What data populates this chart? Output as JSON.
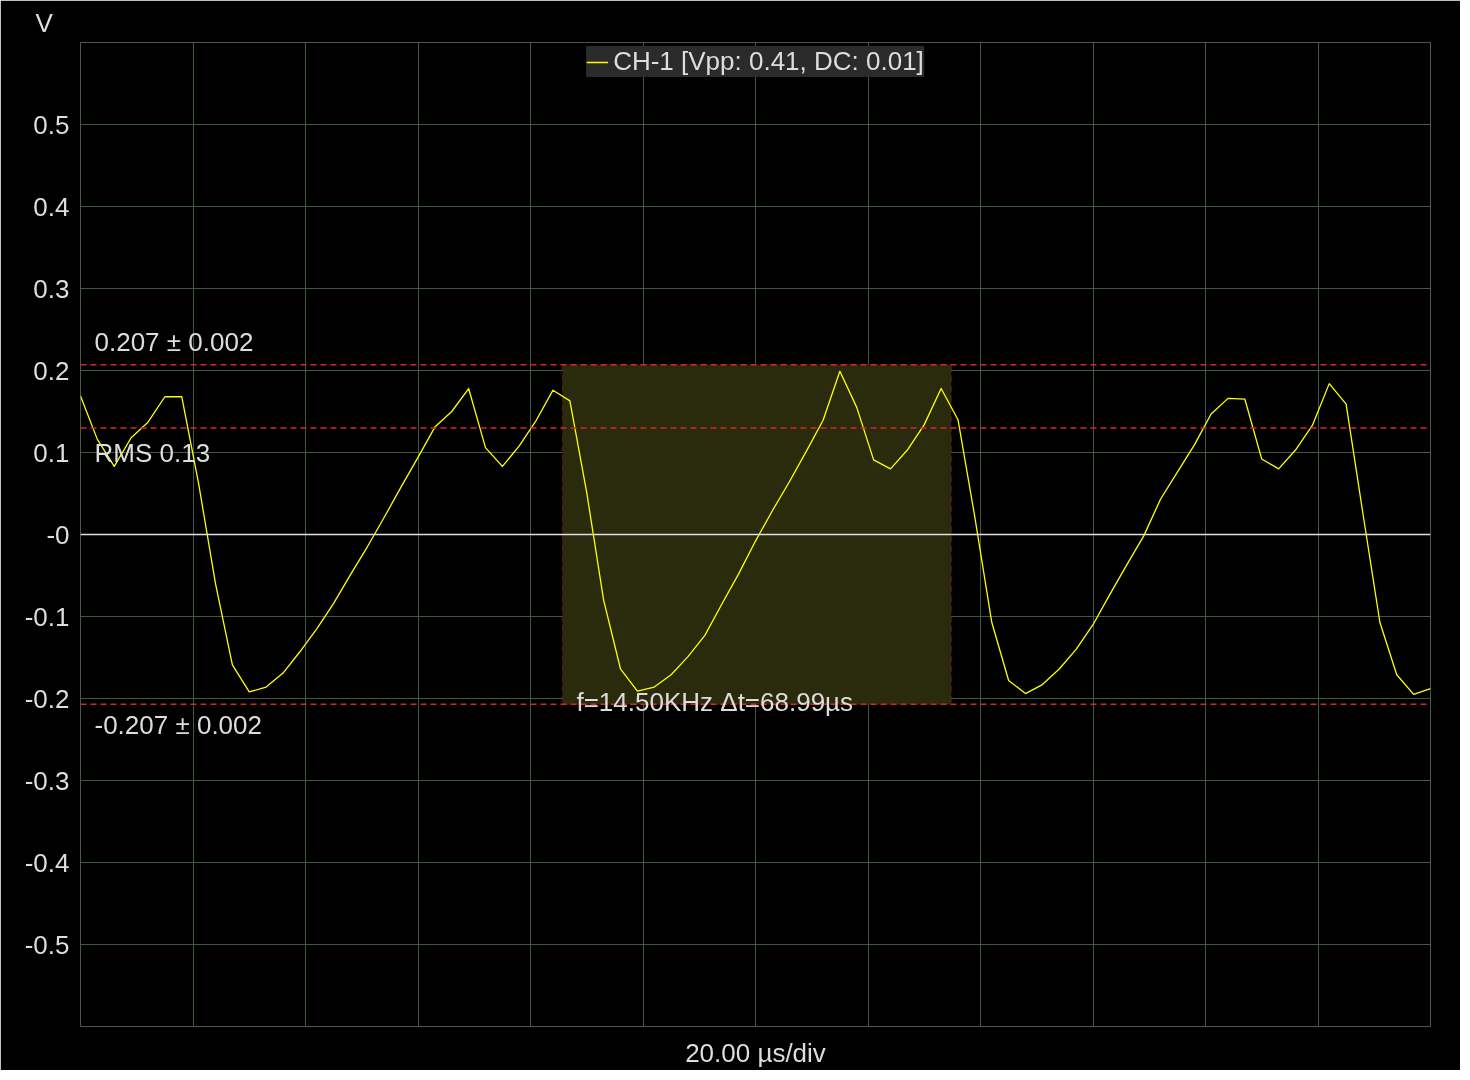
{
  "chart_data": {
    "type": "line",
    "xlabel": "20.00 µs/div",
    "ylabel": "V",
    "categories": [
      null,
      null,
      null,
      null,
      null,
      null,
      null,
      null,
      null,
      null,
      null,
      null,
      null,
      null,
      null,
      null,
      null,
      null,
      null,
      null,
      null,
      null,
      null,
      null,
      null,
      null,
      null,
      null,
      null,
      null,
      null,
      null,
      null,
      null,
      null,
      null,
      null,
      null,
      null,
      null,
      null,
      null,
      null,
      null,
      null,
      null,
      null,
      null,
      null,
      null,
      null,
      null,
      null,
      null,
      null,
      null,
      null,
      null,
      null,
      null,
      null,
      null,
      null,
      null,
      null,
      null,
      null,
      null,
      null,
      null,
      null,
      null,
      null,
      null,
      null,
      null,
      null,
      null,
      null,
      null,
      null
    ],
    "ylim": [
      -0.6,
      0.6
    ],
    "yticks": [
      -0.5,
      -0.4,
      -0.3,
      -0.2,
      -0.1,
      {
        "value": 0,
        "label": "-0"
      },
      0.1,
      0.2,
      0.3,
      0.4,
      0.5
    ],
    "tick_labels": "y",
    "grid": true,
    "legend": "top",
    "line_style": "solid",
    "series": [
      {
        "name": "CH-1 [Vpp: 0.41, DC: 0.01]",
        "color": "#ffff00",
        "values": [
          0.169,
          0.116,
          0.083,
          0.118,
          0.137,
          0.168,
          0.168,
          0.062,
          -0.06,
          -0.159,
          -0.192,
          -0.186,
          -0.169,
          -0.143,
          -0.115,
          -0.084,
          -0.049,
          -0.015,
          0.021,
          0.058,
          0.094,
          0.131,
          0.15,
          0.178,
          0.106,
          0.083,
          0.108,
          0.139,
          0.176,
          0.163,
          0.051,
          -0.08,
          -0.164,
          -0.191,
          -0.186,
          -0.171,
          -0.149,
          -0.123,
          -0.085,
          -0.048,
          -0.008,
          0.029,
          0.064,
          0.101,
          0.139,
          0.199,
          0.155,
          0.091,
          0.08,
          0.103,
          0.134,
          0.178,
          0.14,
          0.021,
          -0.107,
          -0.178,
          -0.194,
          -0.183,
          -0.164,
          -0.14,
          -0.11,
          -0.073,
          -0.037,
          -0.002,
          0.043,
          0.076,
          0.109,
          0.147,
          0.166,
          0.165,
          0.092,
          0.08,
          0.103,
          0.133,
          0.184,
          0.159,
          0.025,
          -0.107,
          -0.171,
          -0.195,
          -0.188
        ]
      }
    ],
    "ref_lines": [
      {
        "axis": "y",
        "value": 0.207,
        "label": "0.207 ± 0.002",
        "color": "#d62728",
        "line_style": "dashed"
      },
      {
        "axis": "y",
        "value": 0.13,
        "label": "RMS 0.13",
        "color": "#d62728",
        "line_style": "dashed"
      },
      {
        "axis": "y",
        "value": -0.207,
        "label": "-0.207 ± 0.002",
        "color": "#d62728",
        "line_style": "dashed"
      },
      {
        "axis": "y",
        "value": 0,
        "label": null,
        "color": "#e0e0e0",
        "line_style": "solid"
      }
    ],
    "bands": [
      {
        "axis": "y",
        "from": -0.207,
        "to": 0.207,
        "color": "#2a2a0c"
      }
    ],
    "annotations": [
      "f=14.50KHz Δt=68.99µs"
    ]
  }
}
